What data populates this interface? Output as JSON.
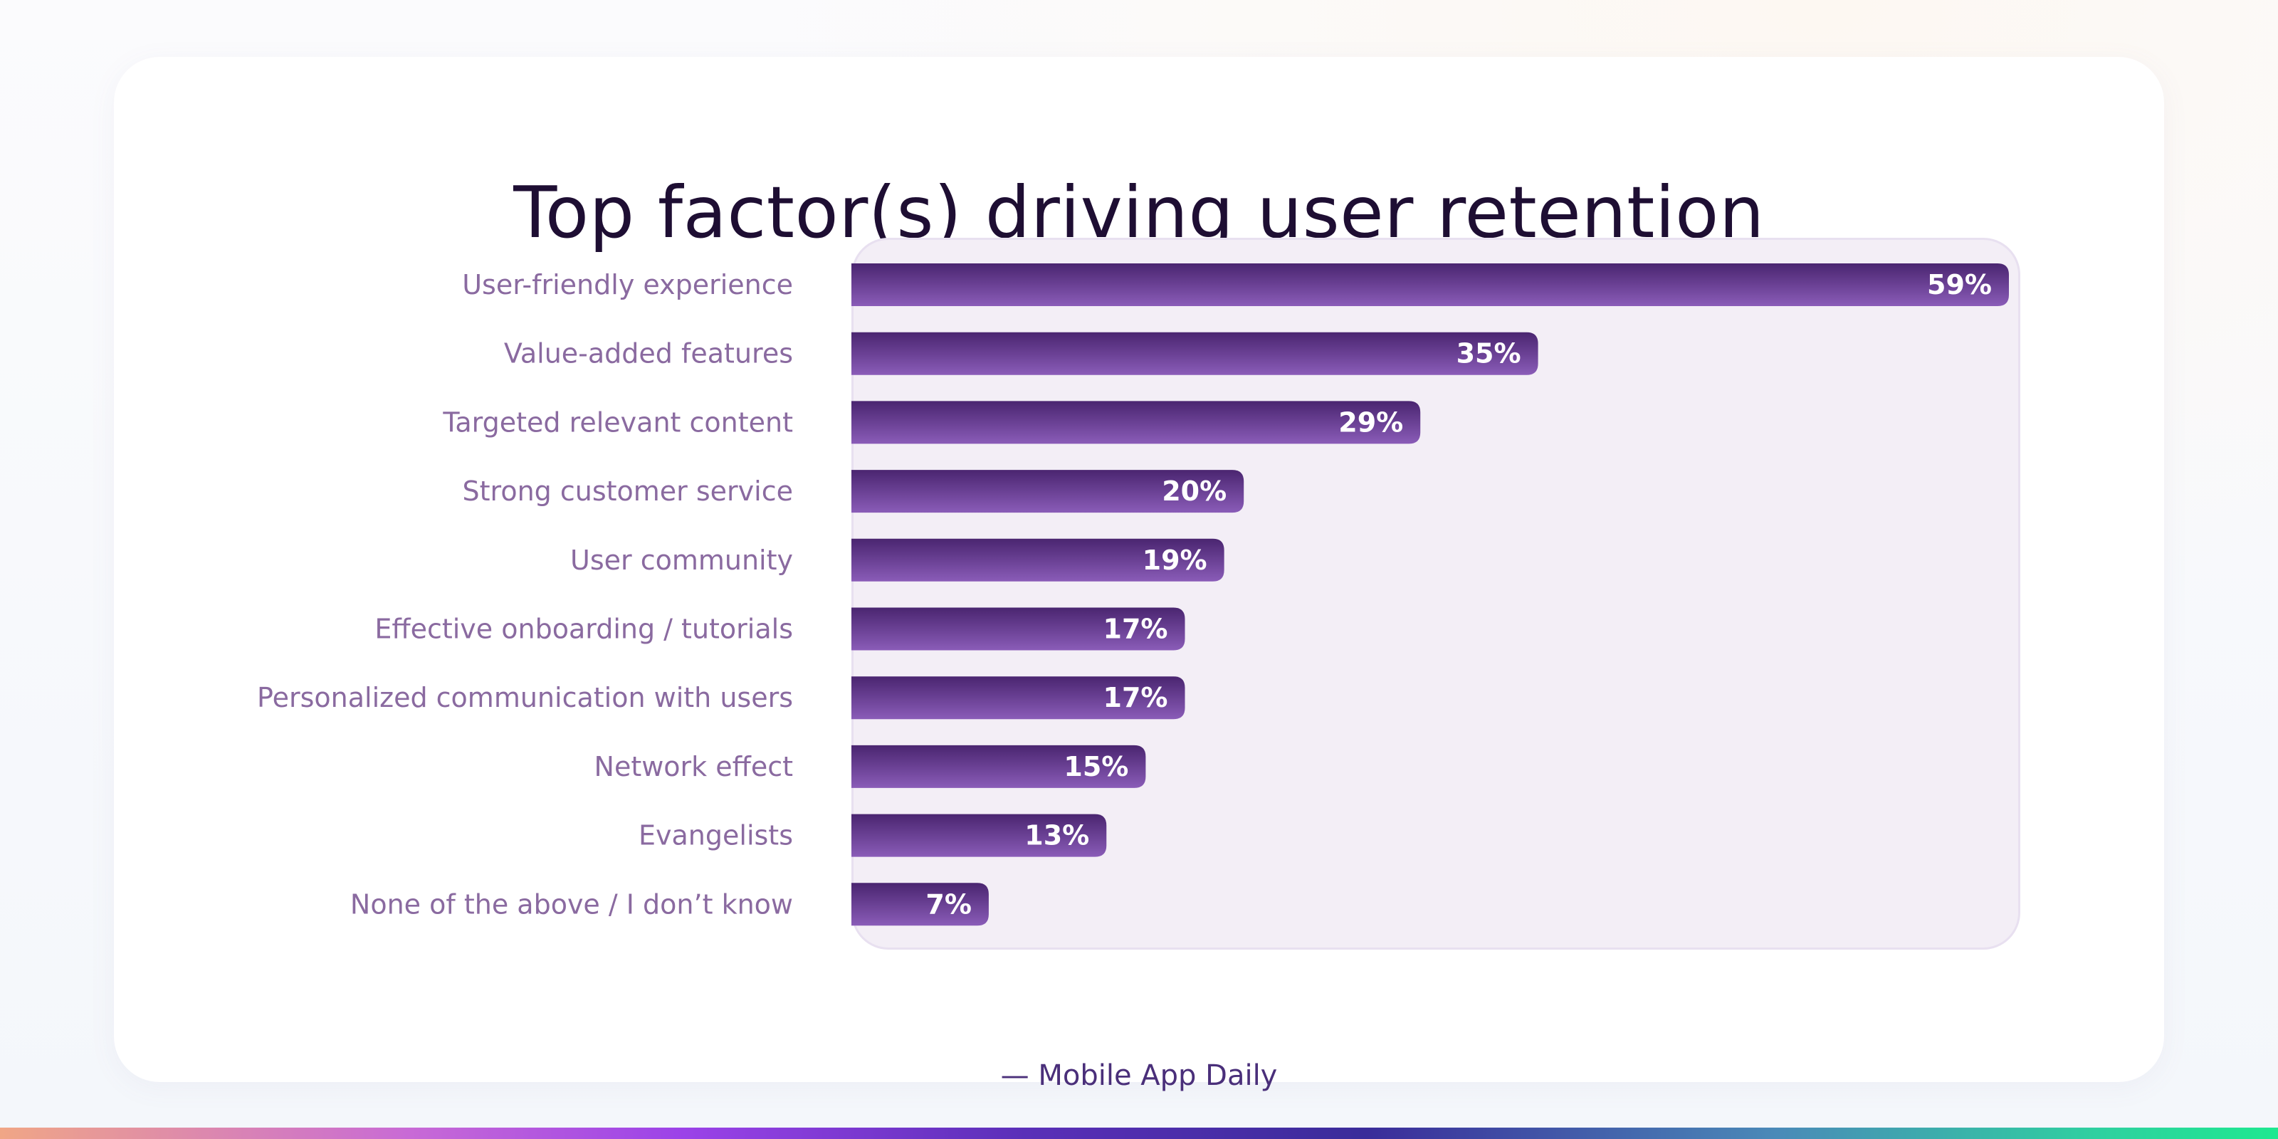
{
  "chart_data": {
    "type": "bar",
    "orientation": "horizontal",
    "title": "Top factor(s) driving user retention",
    "categories": [
      "User-friendly experience",
      "Value-added features",
      "Targeted relevant content",
      "Strong customer service",
      "User community",
      "Effective onboarding / tutorials",
      "Personalized communication with users",
      "Network effect",
      "Evangelists",
      "None of the above / I don’t know"
    ],
    "values": [
      59,
      35,
      29,
      20,
      19,
      17,
      17,
      15,
      13,
      7
    ],
    "value_labels": [
      "59%",
      "35%",
      "29%",
      "20%",
      "19%",
      "17%",
      "17%",
      "15%",
      "13%",
      "7%"
    ],
    "xlim": [
      0,
      59
    ],
    "grid": false,
    "bar_color_top": "#4a2570",
    "bar_color_bottom": "#8a5cb8",
    "category_label_color": "#8a6aa0",
    "value_label_color": "#ffffff"
  },
  "source": "— Mobile App Daily",
  "colors": {
    "title": "#1e0e33",
    "plot_background": "#f3eef6",
    "source_text": "#4a2f7a"
  }
}
